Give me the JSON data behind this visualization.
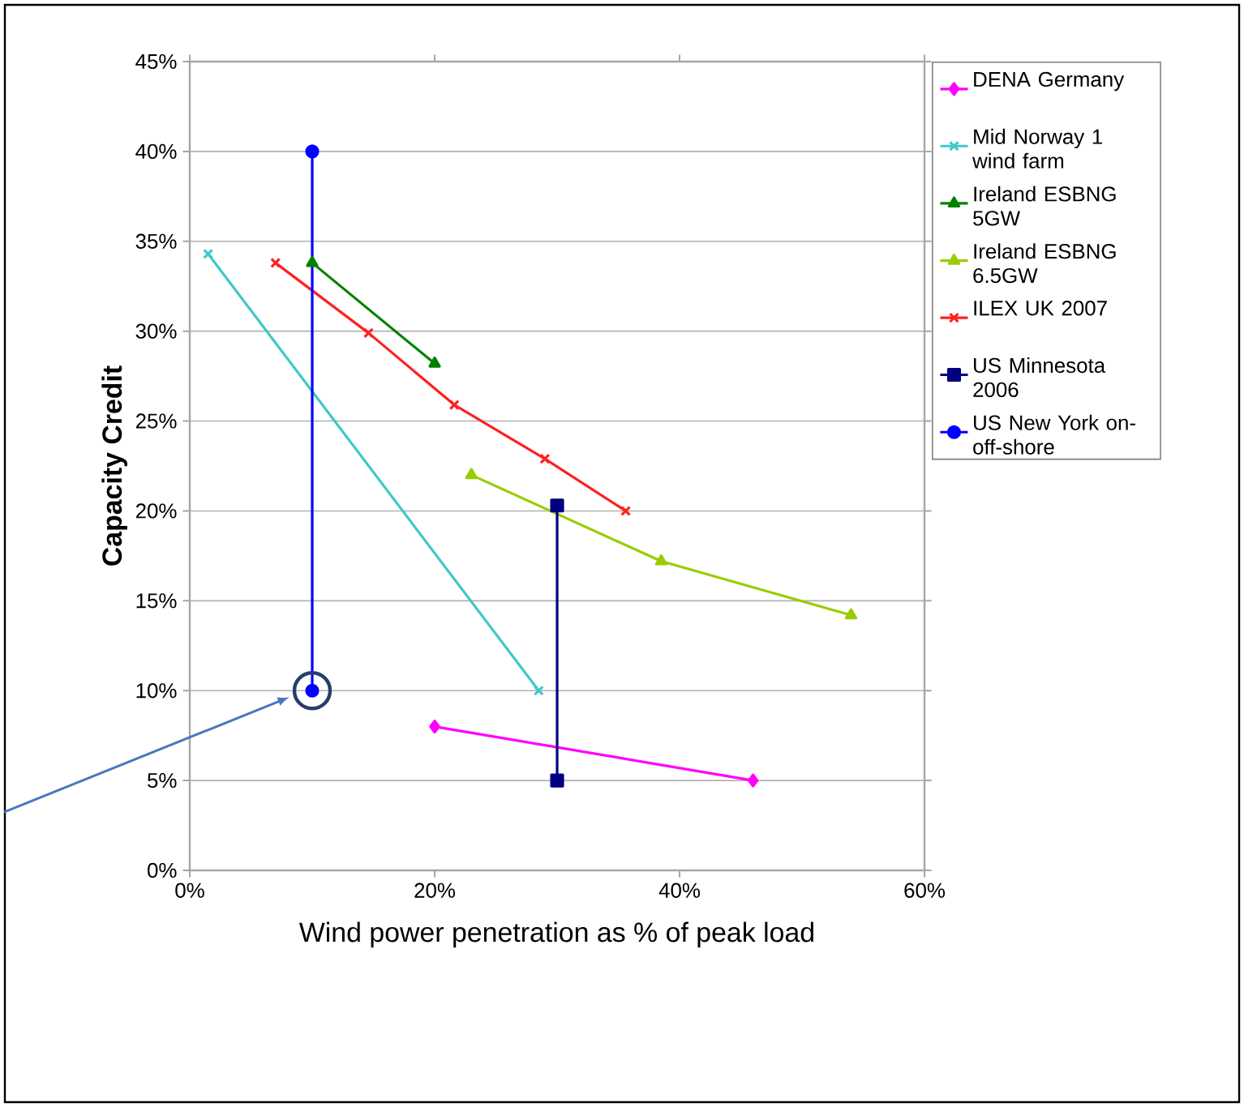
{
  "chart_data": {
    "type": "line",
    "xlabel": "Wind power penetration as % of peak load",
    "ylabel": "Capacity  Credit",
    "xlim": [
      0,
      60
    ],
    "xticks": [
      {
        "value": 0,
        "label": "0%"
      },
      {
        "value": 20,
        "label": "20%"
      },
      {
        "value": 40,
        "label": "40%"
      },
      {
        "value": 60,
        "label": "60%"
      }
    ],
    "ylim": [
      0,
      45
    ],
    "yticks": [
      {
        "value": 0,
        "label": "0%"
      },
      {
        "value": 5,
        "label": "5%"
      },
      {
        "value": 10,
        "label": "10%"
      },
      {
        "value": 15,
        "label": "15%"
      },
      {
        "value": 20,
        "label": "20%"
      },
      {
        "value": 25,
        "label": "25%"
      },
      {
        "value": 30,
        "label": "30%"
      },
      {
        "value": 35,
        "label": "35%"
      },
      {
        "value": 40,
        "label": "40%"
      },
      {
        "value": 45,
        "label": "45%"
      }
    ],
    "grid": "y",
    "legend": "right",
    "series": [
      {
        "name": "DENA Germany",
        "color": "#ff00ff",
        "marker": "diamond",
        "x": [
          20,
          46
        ],
        "values": [
          8,
          5
        ]
      },
      {
        "name": "Mid Norway 1 wind farm",
        "color": "#40c8c8",
        "marker": "cross",
        "x": [
          1.5,
          28.5
        ],
        "values": [
          34.3,
          10
        ]
      },
      {
        "name": "Ireland ESBNG 5GW",
        "color": "#008000",
        "marker": "triangle",
        "x": [
          10,
          20
        ],
        "values": [
          33.8,
          28.2
        ]
      },
      {
        "name": "Ireland ESBNG 6.5GW",
        "color": "#99cc00",
        "marker": "triangle",
        "x": [
          23,
          38.5,
          54
        ],
        "values": [
          22,
          17.2,
          14.2
        ]
      },
      {
        "name": "ILEX UK 2007",
        "color": "#ff2020",
        "marker": "cross",
        "x": [
          7,
          14.6,
          21.6,
          29,
          35.6
        ],
        "values": [
          33.8,
          29.9,
          25.9,
          22.9,
          20
        ]
      },
      {
        "name": "US Minnesota 2006",
        "color": "#000080",
        "marker": "square",
        "x": [
          30,
          30
        ],
        "values": [
          20.3,
          5
        ]
      },
      {
        "name": "US New York on-off-shore",
        "color": "#0000ff",
        "marker": "circle",
        "x": [
          10,
          10
        ],
        "values": [
          40,
          10
        ]
      }
    ]
  }
}
